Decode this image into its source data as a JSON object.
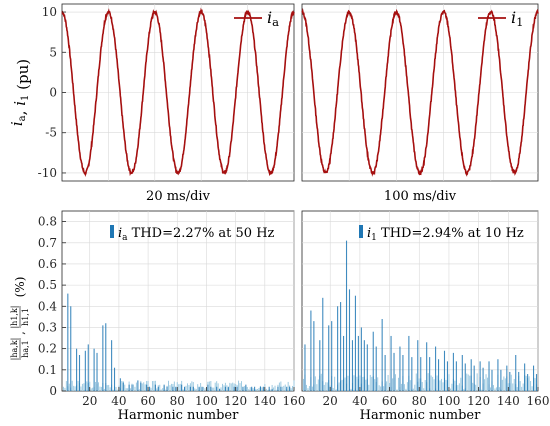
{
  "chart_data": [
    {
      "type": "line",
      "panel": "top-left",
      "xlabel": "20 ms/div",
      "ylabel": "i_a, i_1 (pu)",
      "ylim": [
        -11,
        11
      ],
      "yticks": [
        -10,
        -5,
        0,
        5,
        10
      ],
      "grid": true,
      "legend": "top-right",
      "series": [
        {
          "name": "i_a",
          "color": "#a50f0f",
          "amplitude": 10,
          "cycles": 5,
          "phase_note": "starts near +10 at left edge"
        }
      ]
    },
    {
      "type": "line",
      "panel": "top-right",
      "xlabel": "100 ms/div",
      "ylim": [
        -11,
        11
      ],
      "yticks": [
        -10,
        -5,
        0,
        5,
        10
      ],
      "grid": true,
      "legend": "top-right",
      "series": [
        {
          "name": "i_1",
          "color": "#a50f0f",
          "amplitude": 10,
          "cycles": 5
        }
      ]
    },
    {
      "type": "bar",
      "panel": "bottom-left",
      "xlabel": "Harmonic number",
      "ylabel": "|h_a,k| / h_a,1 , |h_1,k| / h_1,1 (%)",
      "xlim": [
        1,
        160
      ],
      "xticks": [
        20,
        40,
        60,
        80,
        100,
        120,
        140,
        160
      ],
      "ylim": [
        0,
        0.85
      ],
      "yticks": [
        0,
        0.1,
        0.2,
        0.3,
        0.4,
        0.5,
        0.6,
        0.7,
        0.8
      ],
      "grid": true,
      "annotation": {
        "var": "i",
        "sub": "a",
        "text": " THD=2.27% at 50 Hz"
      },
      "color": "#1f77b4",
      "series": [
        {
          "x": [
            5,
            7,
            11,
            13,
            17,
            19,
            23,
            25,
            29,
            31,
            35,
            37,
            41,
            43,
            47,
            49,
            53,
            55,
            59,
            61,
            65,
            67,
            71,
            73,
            77,
            79,
            83,
            85,
            89,
            91,
            95,
            97,
            101,
            103,
            107,
            109,
            113,
            115,
            119,
            121,
            125,
            127,
            131,
            133,
            137,
            139,
            143,
            145,
            149,
            151,
            155,
            157
          ],
          "values": [
            0.46,
            0.4,
            0.2,
            0.17,
            0.19,
            0.22,
            0.2,
            0.18,
            0.31,
            0.32,
            0.24,
            0.11,
            0.06,
            0.04,
            0.03,
            0.03,
            0.05,
            0.04,
            0.03,
            0.02,
            0.03,
            0.02,
            0.03,
            0.02,
            0.02,
            0.02,
            0.03,
            0.02,
            0.02,
            0.02,
            0.02,
            0.02,
            0.03,
            0.02,
            0.02,
            0.01,
            0.02,
            0.02,
            0.02,
            0.02,
            0.02,
            0.03,
            0.02,
            0.02,
            0.02,
            0.02,
            0.02,
            0.01,
            0.02,
            0.02,
            0.02,
            0.02
          ]
        }
      ]
    },
    {
      "type": "bar",
      "panel": "bottom-right",
      "xlabel": "Harmonic number",
      "xlim": [
        1,
        160
      ],
      "xticks": [
        20,
        40,
        60,
        80,
        100,
        120,
        140,
        160
      ],
      "ylim": [
        0,
        0.85
      ],
      "grid": true,
      "annotation": {
        "var": "i",
        "sub": "1",
        "text": " THD=2.94% at 10 Hz"
      },
      "color": "#1f77b4",
      "series": [
        {
          "x": [
            3,
            7,
            9,
            13,
            15,
            19,
            21,
            25,
            27,
            29,
            31,
            33,
            35,
            37,
            39,
            41,
            43,
            45,
            49,
            51,
            55,
            57,
            61,
            63,
            67,
            69,
            73,
            75,
            79,
            81,
            85,
            87,
            91,
            93,
            97,
            99,
            103,
            105,
            109,
            111,
            115,
            117,
            121,
            123,
            127,
            129,
            133,
            135,
            139,
            141,
            145,
            147,
            151,
            153,
            157,
            159
          ],
          "values": [
            0.22,
            0.38,
            0.33,
            0.24,
            0.44,
            0.31,
            0.33,
            0.4,
            0.42,
            0.26,
            0.71,
            0.48,
            0.24,
            0.45,
            0.26,
            0.3,
            0.24,
            0.22,
            0.28,
            0.21,
            0.34,
            0.17,
            0.26,
            0.18,
            0.21,
            0.17,
            0.26,
            0.16,
            0.24,
            0.16,
            0.23,
            0.16,
            0.21,
            0.15,
            0.19,
            0.14,
            0.18,
            0.14,
            0.17,
            0.13,
            0.15,
            0.12,
            0.14,
            0.11,
            0.14,
            0.1,
            0.15,
            0.1,
            0.12,
            0.09,
            0.17,
            0.09,
            0.13,
            0.08,
            0.12,
            0.08
          ]
        }
      ]
    }
  ]
}
